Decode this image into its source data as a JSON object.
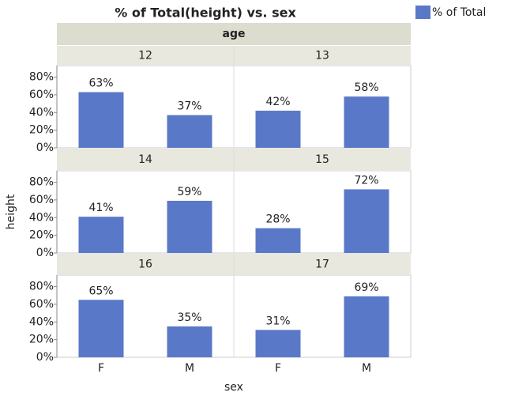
{
  "chart_data": {
    "type": "bar",
    "title": "% of Total(height) vs. sex",
    "facet_label": "age",
    "x_label": "sex",
    "y_label": "height",
    "legend": {
      "label": "% of Total",
      "corner": "top-right"
    },
    "color": "#5a78c8",
    "categories": [
      "F",
      "M"
    ],
    "ylim": [
      0,
      93
    ],
    "yticks": [
      {
        "value": 0,
        "label": "0%"
      },
      {
        "value": 20,
        "label": "20%"
      },
      {
        "value": 40,
        "label": "40%"
      },
      {
        "value": 60,
        "label": "60%"
      },
      {
        "value": 80,
        "label": "80%"
      }
    ],
    "panels": [
      {
        "label": "12",
        "values": [
          63,
          37
        ],
        "value_labels": [
          "63%",
          "37%"
        ]
      },
      {
        "label": "13",
        "values": [
          42,
          58
        ],
        "value_labels": [
          "42%",
          "58%"
        ]
      },
      {
        "label": "14",
        "values": [
          41,
          59
        ],
        "value_labels": [
          "41%",
          "59%"
        ]
      },
      {
        "label": "15",
        "values": [
          28,
          72
        ],
        "value_labels": [
          "28%",
          "72%"
        ]
      },
      {
        "label": "16",
        "values": [
          65,
          35
        ],
        "value_labels": [
          "65%",
          "35%"
        ]
      },
      {
        "label": "17",
        "values": [
          31,
          69
        ],
        "value_labels": [
          "31%",
          "69%"
        ]
      }
    ]
  }
}
